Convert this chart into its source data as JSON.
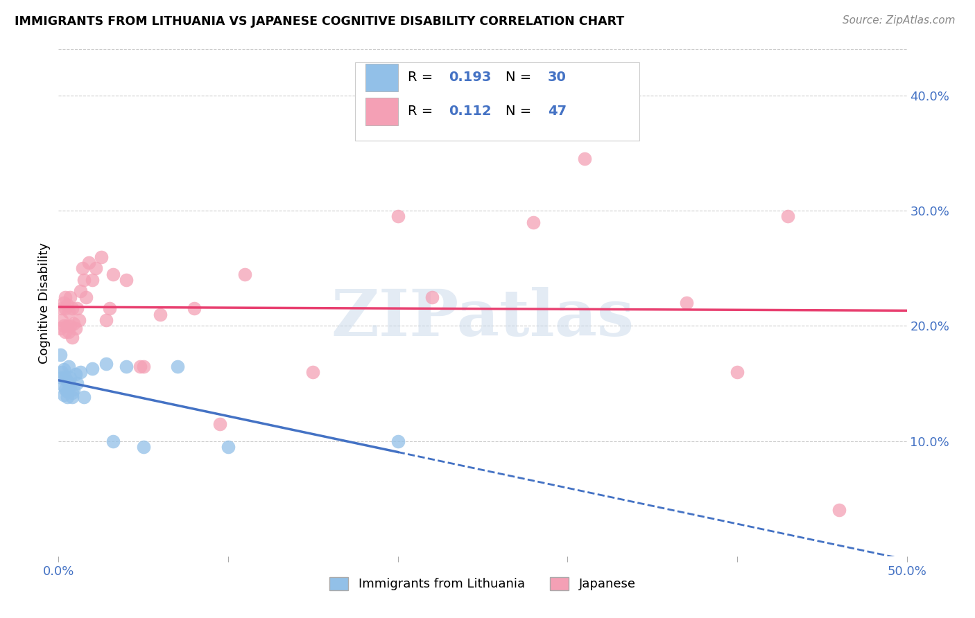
{
  "title": "IMMIGRANTS FROM LITHUANIA VS JAPANESE COGNITIVE DISABILITY CORRELATION CHART",
  "source": "Source: ZipAtlas.com",
  "ylabel": "Cognitive Disability",
  "xlim": [
    0.0,
    0.5
  ],
  "ylim": [
    0.0,
    0.44
  ],
  "watermark": "ZIPatlas",
  "blue_color": "#92C0E8",
  "pink_color": "#F4A0B5",
  "blue_line_color": "#4472C4",
  "pink_line_color": "#E84070",
  "legend_label1": "Immigrants from Lithuania",
  "legend_label2": "Japanese",
  "blue_x": [
    0.001,
    0.002,
    0.002,
    0.003,
    0.003,
    0.003,
    0.004,
    0.004,
    0.005,
    0.005,
    0.005,
    0.006,
    0.006,
    0.007,
    0.007,
    0.008,
    0.008,
    0.009,
    0.01,
    0.011,
    0.013,
    0.015,
    0.02,
    0.028,
    0.032,
    0.04,
    0.05,
    0.07,
    0.1,
    0.2
  ],
  "blue_y": [
    0.175,
    0.16,
    0.155,
    0.162,
    0.148,
    0.14,
    0.155,
    0.145,
    0.152,
    0.143,
    0.138,
    0.15,
    0.165,
    0.148,
    0.155,
    0.142,
    0.138,
    0.145,
    0.158,
    0.15,
    0.16,
    0.138,
    0.163,
    0.167,
    0.1,
    0.165,
    0.095,
    0.165,
    0.095,
    0.1
  ],
  "pink_x": [
    0.001,
    0.002,
    0.002,
    0.003,
    0.003,
    0.004,
    0.004,
    0.004,
    0.005,
    0.005,
    0.006,
    0.006,
    0.007,
    0.007,
    0.008,
    0.008,
    0.009,
    0.01,
    0.011,
    0.012,
    0.013,
    0.014,
    0.015,
    0.016,
    0.018,
    0.02,
    0.022,
    0.025,
    0.028,
    0.03,
    0.032,
    0.04,
    0.05,
    0.06,
    0.08,
    0.095,
    0.11,
    0.15,
    0.2,
    0.22,
    0.28,
    0.31,
    0.37,
    0.4,
    0.43,
    0.46,
    0.048
  ],
  "pink_y": [
    0.198,
    0.205,
    0.215,
    0.2,
    0.22,
    0.195,
    0.215,
    0.225,
    0.2,
    0.218,
    0.195,
    0.212,
    0.2,
    0.225,
    0.19,
    0.215,
    0.202,
    0.198,
    0.215,
    0.205,
    0.23,
    0.25,
    0.24,
    0.225,
    0.255,
    0.24,
    0.25,
    0.26,
    0.205,
    0.215,
    0.245,
    0.24,
    0.165,
    0.21,
    0.215,
    0.115,
    0.245,
    0.16,
    0.295,
    0.225,
    0.29,
    0.345,
    0.22,
    0.16,
    0.295,
    0.04,
    0.165
  ]
}
